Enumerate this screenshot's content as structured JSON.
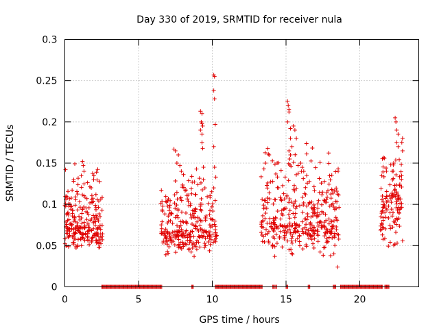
{
  "chart_data": {
    "type": "scatter",
    "title": "Day 330 of 2019, SRMTID for receiver nula",
    "xlabel": "GPS time / hours",
    "ylabel": "SRMTID / TECUs",
    "xlim": [
      0,
      24
    ],
    "ylim": [
      0,
      0.3
    ],
    "xticks": [
      "0",
      "5",
      "10",
      "15",
      "20"
    ],
    "yticks": [
      "0",
      "0.05",
      "0.1",
      "0.15",
      "0.2",
      "0.25",
      "0.3"
    ],
    "grid": true,
    "marker": "+",
    "color": "#e00000",
    "clusters": [
      {
        "x_range": [
          0.0,
          2.6
        ],
        "y_range": [
          0.035,
          0.155
        ],
        "y_center": 0.075,
        "count": 240
      },
      {
        "x_range": [
          6.5,
          10.3
        ],
        "y_range": [
          0.03,
          0.165
        ],
        "y_center": 0.068,
        "count": 290
      },
      {
        "x_range": [
          13.3,
          18.6
        ],
        "y_range": [
          0.03,
          0.195
        ],
        "y_center": 0.078,
        "count": 380
      },
      {
        "x_range": [
          21.4,
          22.9
        ],
        "y_range": [
          0.03,
          0.185
        ],
        "y_center": 0.1,
        "count": 120
      }
    ],
    "points": [
      {
        "x": 0.6,
        "y": 0.128
      },
      {
        "x": 0.6,
        "y": 0.13
      },
      {
        "x": 1.2,
        "y": 0.152
      },
      {
        "x": 1.25,
        "y": 0.147
      },
      {
        "x": 1.3,
        "y": 0.14
      },
      {
        "x": 1.3,
        "y": 0.125
      },
      {
        "x": 7.4,
        "y": 0.167
      },
      {
        "x": 7.5,
        "y": 0.165
      },
      {
        "x": 7.7,
        "y": 0.16
      },
      {
        "x": 7.6,
        "y": 0.15
      },
      {
        "x": 7.8,
        "y": 0.147
      },
      {
        "x": 7.9,
        "y": 0.14
      },
      {
        "x": 9.2,
        "y": 0.213
      },
      {
        "x": 9.3,
        "y": 0.21
      },
      {
        "x": 9.25,
        "y": 0.2
      },
      {
        "x": 9.3,
        "y": 0.198
      },
      {
        "x": 9.35,
        "y": 0.195
      },
      {
        "x": 9.2,
        "y": 0.19
      },
      {
        "x": 9.3,
        "y": 0.185
      },
      {
        "x": 9.3,
        "y": 0.175
      },
      {
        "x": 9.35,
        "y": 0.168
      },
      {
        "x": 9.4,
        "y": 0.145
      },
      {
        "x": 9.4,
        "y": 0.13
      },
      {
        "x": 9.5,
        "y": 0.12
      },
      {
        "x": 10.1,
        "y": 0.257
      },
      {
        "x": 10.15,
        "y": 0.255
      },
      {
        "x": 10.1,
        "y": 0.238
      },
      {
        "x": 10.15,
        "y": 0.228
      },
      {
        "x": 10.2,
        "y": 0.197
      },
      {
        "x": 10.1,
        "y": 0.17
      },
      {
        "x": 10.15,
        "y": 0.145
      },
      {
        "x": 10.1,
        "y": 0.12
      },
      {
        "x": 13.8,
        "y": 0.161
      },
      {
        "x": 13.85,
        "y": 0.16
      },
      {
        "x": 13.6,
        "y": 0.15
      },
      {
        "x": 13.5,
        "y": 0.143
      },
      {
        "x": 14.4,
        "y": 0.15
      },
      {
        "x": 15.1,
        "y": 0.225
      },
      {
        "x": 15.15,
        "y": 0.22
      },
      {
        "x": 15.2,
        "y": 0.215
      },
      {
        "x": 15.2,
        "y": 0.212
      },
      {
        "x": 15.1,
        "y": 0.2
      },
      {
        "x": 15.3,
        "y": 0.192
      },
      {
        "x": 15.5,
        "y": 0.195
      },
      {
        "x": 15.6,
        "y": 0.19
      },
      {
        "x": 15.7,
        "y": 0.18
      },
      {
        "x": 15.3,
        "y": 0.18
      },
      {
        "x": 15.4,
        "y": 0.17
      },
      {
        "x": 15.2,
        "y": 0.165
      },
      {
        "x": 15.3,
        "y": 0.16
      },
      {
        "x": 15.25,
        "y": 0.155
      },
      {
        "x": 16.0,
        "y": 0.15
      },
      {
        "x": 16.2,
        "y": 0.14
      },
      {
        "x": 16.4,
        "y": 0.135
      },
      {
        "x": 18.1,
        "y": 0.118
      },
      {
        "x": 18.4,
        "y": 0.095
      },
      {
        "x": 18.5,
        "y": 0.024
      },
      {
        "x": 22.4,
        "y": 0.205
      },
      {
        "x": 22.45,
        "y": 0.2
      },
      {
        "x": 22.5,
        "y": 0.19
      },
      {
        "x": 22.6,
        "y": 0.185
      },
      {
        "x": 22.5,
        "y": 0.175
      },
      {
        "x": 22.9,
        "y": 0.18
      },
      {
        "x": 22.85,
        "y": 0.175
      },
      {
        "x": 22.9,
        "y": 0.165
      },
      {
        "x": 22.6,
        "y": 0.17
      },
      {
        "x": 22.3,
        "y": 0.15
      },
      {
        "x": 22.1,
        "y": 0.148
      },
      {
        "x": 22.2,
        "y": 0.14
      }
    ],
    "zero_segments": [
      [
        2.5,
        6.6
      ],
      [
        8.6,
        8.75
      ],
      [
        10.2,
        13.4
      ],
      [
        14.1,
        14.25
      ],
      [
        14.3,
        14.4
      ],
      [
        15.0,
        15.15
      ],
      [
        16.5,
        16.65
      ],
      [
        18.2,
        18.4
      ],
      [
        18.7,
        21.6
      ],
      [
        21.7,
        22.0
      ]
    ]
  }
}
